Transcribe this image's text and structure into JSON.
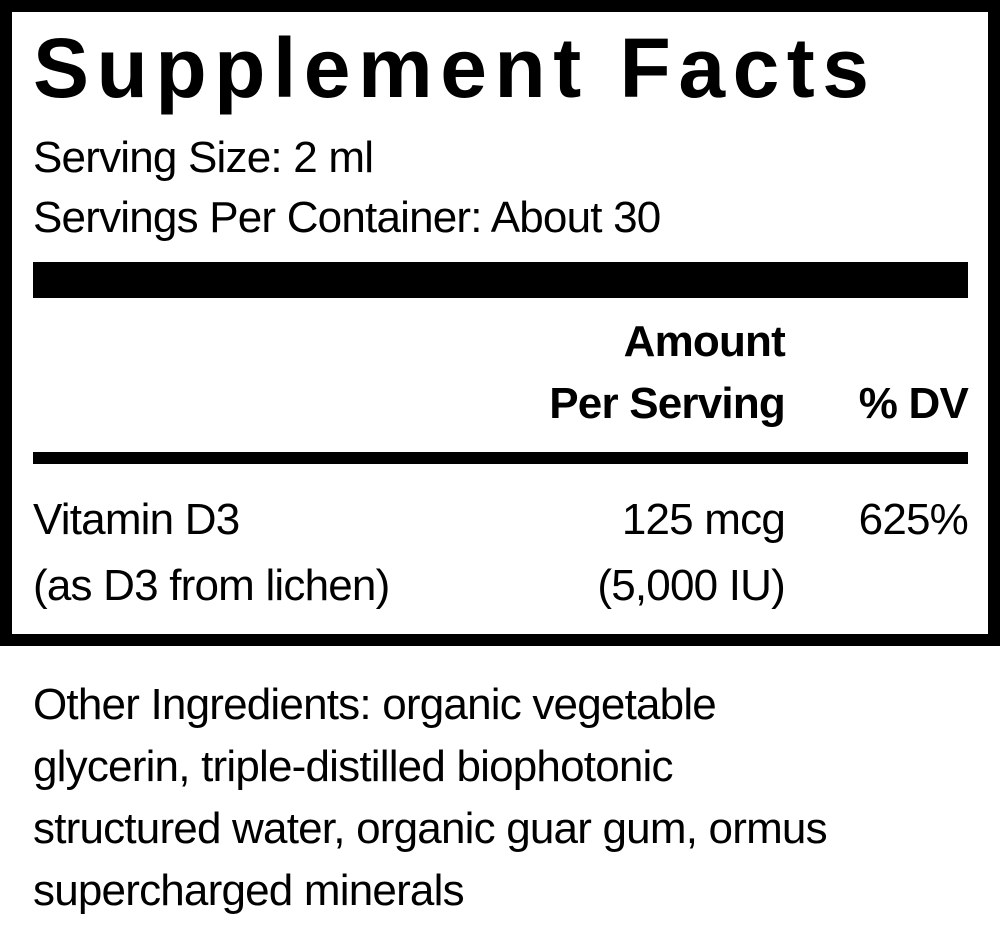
{
  "title": "Supplement Facts",
  "serving_size": "Serving Size: 2 ml",
  "servings_per_container": "Servings Per Container: About 30",
  "table": {
    "headers": {
      "amount_line1": "Amount",
      "amount_line2": "Per Serving",
      "dv": "% DV"
    },
    "rows": [
      {
        "name": "Vitamin D3",
        "source": "(as D3 from lichen)",
        "amount": "125 mcg",
        "amount_alt": "(5,000 IU)",
        "dv": "625%"
      }
    ]
  },
  "other_ingredients": [
    "Other Ingredients: organic vegetable",
    "glycerin, triple-distilled biophotonic",
    "structured water, organic guar gum, ormus",
    "supercharged minerals"
  ]
}
